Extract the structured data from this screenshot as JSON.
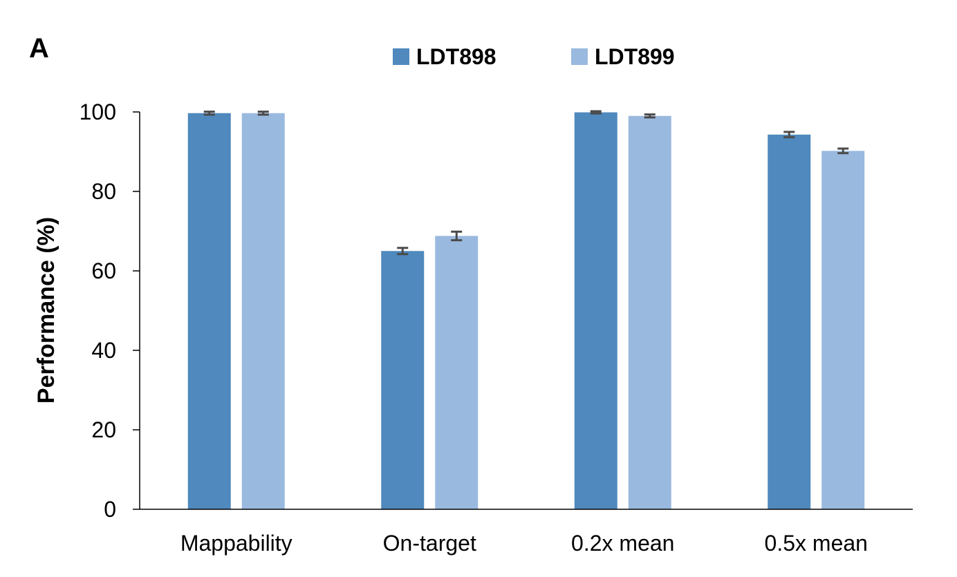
{
  "panel_label": "A",
  "colors": {
    "series0": "#4f89bd",
    "series1": "#9ab9df",
    "axis": "#000000",
    "error": "#4a4a4a"
  },
  "chart_data": {
    "type": "bar",
    "title": "",
    "xlabel": "",
    "ylabel": "Performance (%)",
    "ylim": [
      0,
      100
    ],
    "yticks": [
      0,
      20,
      40,
      60,
      80,
      100
    ],
    "categories": [
      "Mappability",
      "On-target",
      "0.2x mean",
      "0.5x mean"
    ],
    "series": [
      {
        "name": "LDT898",
        "values": [
          99.7,
          65.0,
          99.9,
          94.3
        ],
        "errors": [
          0.2,
          0.6,
          0.1,
          0.5
        ]
      },
      {
        "name": "LDT899",
        "values": [
          99.7,
          68.8,
          99.0,
          90.2
        ],
        "errors": [
          0.2,
          0.9,
          0.2,
          0.4
        ]
      }
    ],
    "legend_position": "top-center",
    "grid": false
  }
}
